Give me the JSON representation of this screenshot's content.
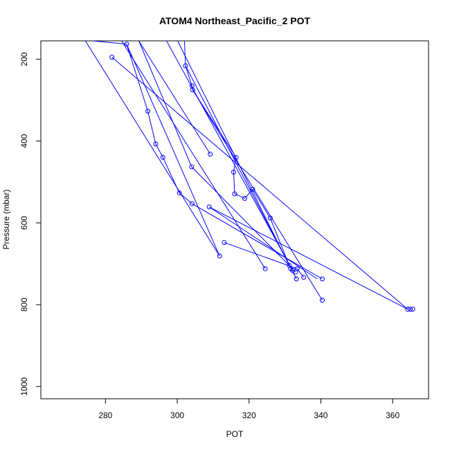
{
  "chart_data": {
    "type": "scatter",
    "title": "ATOM4 Northeast_Pacific_2 POT",
    "xlabel": "POT",
    "ylabel": "Pressure (mbar)",
    "xlim": [
      262,
      370
    ],
    "ylim": [
      1030,
      155
    ],
    "y_reversed": true,
    "x_ticks": [
      280,
      300,
      320,
      340,
      360
    ],
    "y_ticks": [
      200,
      400,
      600,
      800,
      1000
    ],
    "grid": false,
    "legend": "none",
    "line_color": "#0000ff",
    "marker": "open-circle",
    "points": [
      {
        "x": 281.8,
        "y": 195
      },
      {
        "x": 364.9,
        "y": 811
      },
      {
        "x": 364.2,
        "y": 811
      },
      {
        "x": 365.6,
        "y": 811
      },
      {
        "x": 285.9,
        "y": 163
      },
      {
        "x": 291.8,
        "y": 327
      },
      {
        "x": 294.0,
        "y": 407
      },
      {
        "x": 296.0,
        "y": 440
      },
      {
        "x": 300.6,
        "y": 527
      },
      {
        "x": 304.1,
        "y": 553
      },
      {
        "x": 304.0,
        "y": 463
      },
      {
        "x": 309.2,
        "y": 432
      },
      {
        "x": 302.3,
        "y": 216
      },
      {
        "x": 304.1,
        "y": 265
      },
      {
        "x": 304.3,
        "y": 275
      },
      {
        "x": 316.4,
        "y": 440
      },
      {
        "x": 315.7,
        "y": 476
      },
      {
        "x": 316.0,
        "y": 529
      },
      {
        "x": 318.8,
        "y": 540
      },
      {
        "x": 321.0,
        "y": 518
      },
      {
        "x": 325.9,
        "y": 588
      },
      {
        "x": 308.9,
        "y": 561
      },
      {
        "x": 313.1,
        "y": 648
      },
      {
        "x": 311.8,
        "y": 681
      },
      {
        "x": 324.5,
        "y": 712
      },
      {
        "x": 331.2,
        "y": 704
      },
      {
        "x": 331.6,
        "y": 712
      },
      {
        "x": 332.1,
        "y": 716
      },
      {
        "x": 333.0,
        "y": 720
      },
      {
        "x": 333.4,
        "y": 712
      },
      {
        "x": 333.2,
        "y": 737
      },
      {
        "x": 335.2,
        "y": 733
      },
      {
        "x": 340.4,
        "y": 737
      },
      {
        "x": 340.4,
        "y": 789
      }
    ],
    "segments": [
      {
        "x": [
          276.5,
          285.9
        ],
        "y": [
          155,
          163
        ]
      },
      {
        "x": [
          281.8,
          364.2
        ],
        "y": [
          195,
          811
        ]
      },
      {
        "x": [
          284.5,
          324.5
        ],
        "y": [
          155,
          712
        ]
      },
      {
        "x": [
          285.9,
          311.8
        ],
        "y": [
          163,
          681
        ]
      },
      {
        "x": [
          285.9,
          291.8
        ],
        "y": [
          163,
          327
        ]
      },
      {
        "x": [
          291.8,
          294.0
        ],
        "y": [
          327,
          407
        ]
      },
      {
        "x": [
          294.0,
          296.0
        ],
        "y": [
          407,
          440
        ]
      },
      {
        "x": [
          296.0,
          300.6
        ],
        "y": [
          440,
          527
        ]
      },
      {
        "x": [
          300.6,
          304.1
        ],
        "y": [
          527,
          553
        ]
      },
      {
        "x": [
          304.1,
          340.4
        ],
        "y": [
          553,
          737
        ]
      },
      {
        "x": [
          274.4,
          311.8
        ],
        "y": [
          155,
          681
        ]
      },
      {
        "x": [
          289.3,
          309.2
        ],
        "y": [
          155,
          432
        ]
      },
      {
        "x": [
          289.3,
          304.0
        ],
        "y": [
          155,
          463
        ]
      },
      {
        "x": [
          304.0,
          331.2
        ],
        "y": [
          463,
          704
        ]
      },
      {
        "x": [
          300.1,
          331.2
        ],
        "y": [
          155,
          704
        ]
      },
      {
        "x": [
          302.0,
          302.3
        ],
        "y": [
          155,
          216
        ]
      },
      {
        "x": [
          302.3,
          304.1
        ],
        "y": [
          216,
          265
        ]
      },
      {
        "x": [
          304.1,
          304.3
        ],
        "y": [
          265,
          275
        ]
      },
      {
        "x": [
          304.3,
          316.4
        ],
        "y": [
          275,
          440
        ]
      },
      {
        "x": [
          316.4,
          315.7
        ],
        "y": [
          440,
          476
        ]
      },
      {
        "x": [
          315.7,
          316.0
        ],
        "y": [
          476,
          529
        ]
      },
      {
        "x": [
          316.0,
          318.8
        ],
        "y": [
          529,
          540
        ]
      },
      {
        "x": [
          318.8,
          321.0
        ],
        "y": [
          540,
          518
        ]
      },
      {
        "x": [
          321.0,
          325.9
        ],
        "y": [
          518,
          588
        ]
      },
      {
        "x": [
          325.9,
          331.2
        ],
        "y": [
          588,
          704
        ]
      },
      {
        "x": [
          304.3,
          340.4
        ],
        "y": [
          275,
          789
        ]
      },
      {
        "x": [
          302.3,
          333.2
        ],
        "y": [
          216,
          737
        ]
      },
      {
        "x": [
          297.0,
          332.1
        ],
        "y": [
          155,
          716
        ]
      },
      {
        "x": [
          308.9,
          364.2
        ],
        "y": [
          561,
          811
        ]
      },
      {
        "x": [
          308.9,
          339.0
        ],
        "y": [
          561,
          737
        ]
      },
      {
        "x": [
          313.1,
          333.4
        ],
        "y": [
          648,
          712
        ]
      },
      {
        "x": [
          333.4,
          335.2
        ],
        "y": [
          712,
          733
        ]
      },
      {
        "x": [
          331.6,
          333.0
        ],
        "y": [
          712,
          720
        ]
      }
    ]
  }
}
